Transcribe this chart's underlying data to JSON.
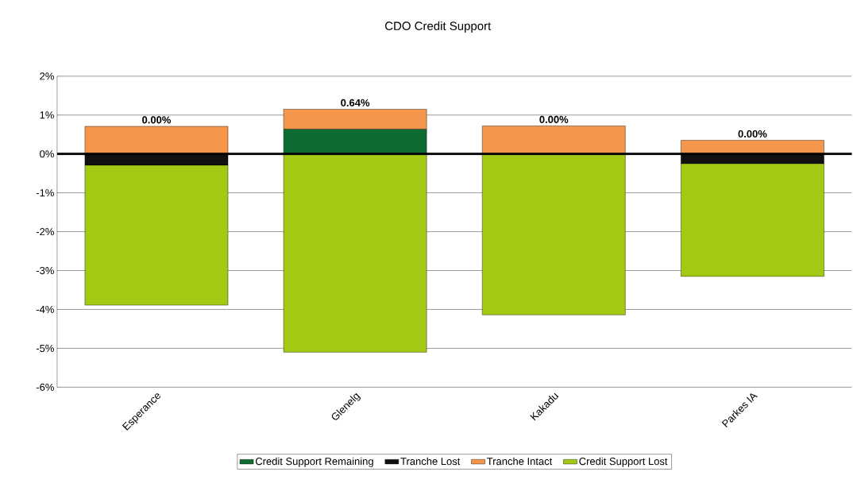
{
  "chart_data": {
    "type": "bar",
    "title": "CDO Credit Support",
    "stacked": true,
    "categories": [
      "Esperance",
      "Glenelg",
      "Kakadu",
      "Parkes IA"
    ],
    "series": [
      {
        "name": "Credit Support Remaining",
        "color": "#0b6b30",
        "values": [
          0,
          0.64,
          0,
          0
        ],
        "value_labels": [
          "0.00%",
          "0.64%",
          "0.00%",
          "0.00%"
        ]
      },
      {
        "name": "Tranche Lost",
        "color": "#111111",
        "values": [
          -0.29,
          0,
          0,
          -0.25
        ]
      },
      {
        "name": "Tranche Intact",
        "color": "#f5964a",
        "values": [
          0.71,
          0.51,
          0.72,
          0.35
        ]
      },
      {
        "name": "Credit Support Lost",
        "color": "#a3c914",
        "values": [
          -3.6,
          -5.1,
          -4.14,
          -2.9
        ]
      }
    ],
    "ylim": [
      -6,
      2
    ],
    "yticks": [
      {
        "value": -6,
        "label": "-6%"
      },
      {
        "value": -5,
        "label": "-5%"
      },
      {
        "value": -4,
        "label": "-4%"
      },
      {
        "value": -3,
        "label": "-3%"
      },
      {
        "value": -2,
        "label": "-2%"
      },
      {
        "value": -1,
        "label": "-1%"
      },
      {
        "value": 0,
        "label": "0%"
      },
      {
        "value": 1,
        "label": "1%"
      },
      {
        "value": 2,
        "label": "2%"
      }
    ],
    "grid": "y",
    "legend": "bottom"
  }
}
